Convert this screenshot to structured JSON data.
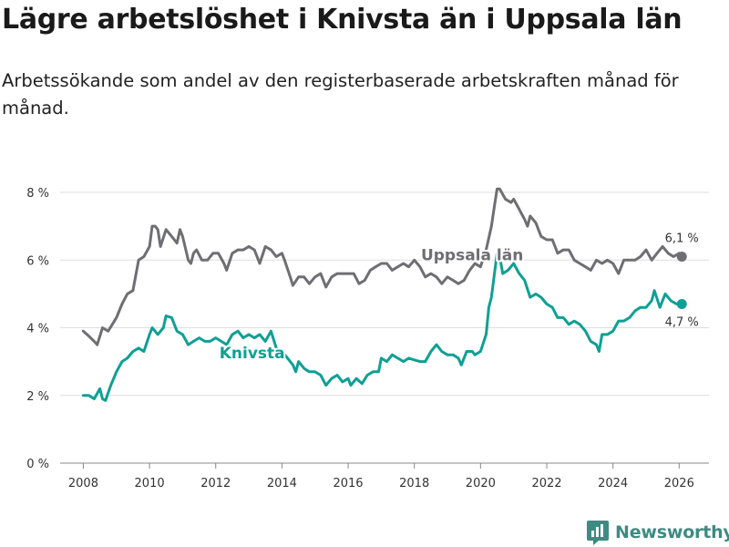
{
  "title": "Lägre arbetslöshet i Knivsta än i Uppsala län",
  "subtitle": "Arbetssökande som andel av den registerbaserade arbetskraften månad för månad.",
  "brand": "Newsworthy",
  "colors": {
    "uppsala": "#6e6e73",
    "knivsta": "#0ea094",
    "grid": "#dddddd",
    "brand": "#3d8b82"
  },
  "chart_data": {
    "type": "line",
    "title": "Lägre arbetslöshet i Knivsta än i Uppsala län",
    "xlabel": "",
    "ylabel": "",
    "xlim": [
      2007.3,
      2026.9
    ],
    "ylim": [
      0,
      8
    ],
    "x_ticks": [
      2008,
      2010,
      2012,
      2014,
      2016,
      2018,
      2020,
      2022,
      2024,
      2026
    ],
    "x_tick_labels": [
      "2008",
      "2010",
      "2012",
      "2014",
      "2016",
      "2018",
      "2020",
      "2022",
      "2024",
      "2026"
    ],
    "y_ticks": [
      0,
      2,
      4,
      6,
      8
    ],
    "y_tick_labels": [
      "0 %",
      "2 %",
      "4 %",
      "6 %",
      "8 %"
    ],
    "grid": true,
    "series": [
      {
        "name": "Uppsala län",
        "color": "#6e6e73",
        "end_label": "6,1 %",
        "points": [
          [
            2008.0,
            3.9
          ],
          [
            2008.17,
            3.75
          ],
          [
            2008.33,
            3.6
          ],
          [
            2008.42,
            3.5
          ],
          [
            2008.58,
            4.0
          ],
          [
            2008.75,
            3.9
          ],
          [
            2009.0,
            4.3
          ],
          [
            2009.17,
            4.7
          ],
          [
            2009.33,
            5.0
          ],
          [
            2009.5,
            5.1
          ],
          [
            2009.67,
            6.0
          ],
          [
            2009.83,
            6.1
          ],
          [
            2010.0,
            6.4
          ],
          [
            2010.08,
            7.0
          ],
          [
            2010.17,
            7.0
          ],
          [
            2010.25,
            6.9
          ],
          [
            2010.33,
            6.4
          ],
          [
            2010.5,
            6.9
          ],
          [
            2010.67,
            6.7
          ],
          [
            2010.83,
            6.5
          ],
          [
            2010.92,
            6.9
          ],
          [
            2011.0,
            6.7
          ],
          [
            2011.17,
            6.0
          ],
          [
            2011.25,
            5.9
          ],
          [
            2011.33,
            6.2
          ],
          [
            2011.42,
            6.3
          ],
          [
            2011.58,
            6.0
          ],
          [
            2011.75,
            6.0
          ],
          [
            2011.92,
            6.2
          ],
          [
            2012.08,
            6.2
          ],
          [
            2012.25,
            5.9
          ],
          [
            2012.33,
            5.7
          ],
          [
            2012.5,
            6.2
          ],
          [
            2012.67,
            6.3
          ],
          [
            2012.83,
            6.3
          ],
          [
            2013.0,
            6.4
          ],
          [
            2013.17,
            6.3
          ],
          [
            2013.33,
            5.9
          ],
          [
            2013.5,
            6.4
          ],
          [
            2013.67,
            6.3
          ],
          [
            2013.83,
            6.1
          ],
          [
            2014.0,
            6.2
          ],
          [
            2014.08,
            6.0
          ],
          [
            2014.25,
            5.5
          ],
          [
            2014.33,
            5.25
          ],
          [
            2014.5,
            5.5
          ],
          [
            2014.67,
            5.5
          ],
          [
            2014.83,
            5.3
          ],
          [
            2015.0,
            5.5
          ],
          [
            2015.17,
            5.6
          ],
          [
            2015.33,
            5.2
          ],
          [
            2015.5,
            5.5
          ],
          [
            2015.67,
            5.6
          ],
          [
            2015.83,
            5.6
          ],
          [
            2016.0,
            5.6
          ],
          [
            2016.17,
            5.6
          ],
          [
            2016.33,
            5.3
          ],
          [
            2016.5,
            5.4
          ],
          [
            2016.67,
            5.7
          ],
          [
            2016.83,
            5.8
          ],
          [
            2017.0,
            5.9
          ],
          [
            2017.17,
            5.9
          ],
          [
            2017.33,
            5.7
          ],
          [
            2017.5,
            5.8
          ],
          [
            2017.67,
            5.9
          ],
          [
            2017.83,
            5.8
          ],
          [
            2018.0,
            6.0
          ],
          [
            2018.17,
            5.8
          ],
          [
            2018.33,
            5.5
          ],
          [
            2018.5,
            5.6
          ],
          [
            2018.67,
            5.5
          ],
          [
            2018.83,
            5.3
          ],
          [
            2019.0,
            5.5
          ],
          [
            2019.17,
            5.4
          ],
          [
            2019.33,
            5.3
          ],
          [
            2019.5,
            5.4
          ],
          [
            2019.67,
            5.7
          ],
          [
            2019.83,
            5.9
          ],
          [
            2020.0,
            5.8
          ],
          [
            2020.17,
            6.3
          ],
          [
            2020.33,
            7.0
          ],
          [
            2020.42,
            7.6
          ],
          [
            2020.5,
            8.1
          ],
          [
            2020.58,
            8.1
          ],
          [
            2020.75,
            7.8
          ],
          [
            2020.92,
            7.7
          ],
          [
            2021.0,
            7.8
          ],
          [
            2021.17,
            7.5
          ],
          [
            2021.33,
            7.2
          ],
          [
            2021.42,
            7.0
          ],
          [
            2021.5,
            7.3
          ],
          [
            2021.67,
            7.1
          ],
          [
            2021.83,
            6.7
          ],
          [
            2022.0,
            6.6
          ],
          [
            2022.17,
            6.6
          ],
          [
            2022.33,
            6.2
          ],
          [
            2022.5,
            6.3
          ],
          [
            2022.67,
            6.3
          ],
          [
            2022.83,
            6.0
          ],
          [
            2023.0,
            5.9
          ],
          [
            2023.17,
            5.8
          ],
          [
            2023.33,
            5.7
          ],
          [
            2023.5,
            6.0
          ],
          [
            2023.67,
            5.9
          ],
          [
            2023.83,
            6.0
          ],
          [
            2024.0,
            5.9
          ],
          [
            2024.17,
            5.6
          ],
          [
            2024.33,
            6.0
          ],
          [
            2024.5,
            6.0
          ],
          [
            2024.67,
            6.0
          ],
          [
            2024.83,
            6.1
          ],
          [
            2025.0,
            6.3
          ],
          [
            2025.17,
            6.0
          ],
          [
            2025.33,
            6.2
          ],
          [
            2025.5,
            6.4
          ],
          [
            2025.67,
            6.2
          ],
          [
            2025.83,
            6.1
          ],
          [
            2026.0,
            6.2
          ],
          [
            2026.08,
            6.1
          ]
        ]
      },
      {
        "name": "Knivsta",
        "color": "#0ea094",
        "end_label": "4,7 %",
        "points": [
          [
            2008.0,
            2.0
          ],
          [
            2008.17,
            2.0
          ],
          [
            2008.33,
            1.9
          ],
          [
            2008.5,
            2.2
          ],
          [
            2008.58,
            1.9
          ],
          [
            2008.67,
            1.85
          ],
          [
            2008.83,
            2.3
          ],
          [
            2009.0,
            2.7
          ],
          [
            2009.17,
            3.0
          ],
          [
            2009.33,
            3.1
          ],
          [
            2009.5,
            3.3
          ],
          [
            2009.67,
            3.4
          ],
          [
            2009.83,
            3.3
          ],
          [
            2010.0,
            3.8
          ],
          [
            2010.08,
            4.0
          ],
          [
            2010.25,
            3.8
          ],
          [
            2010.42,
            4.0
          ],
          [
            2010.5,
            4.35
          ],
          [
            2010.67,
            4.3
          ],
          [
            2010.83,
            3.9
          ],
          [
            2011.0,
            3.8
          ],
          [
            2011.17,
            3.5
          ],
          [
            2011.33,
            3.6
          ],
          [
            2011.5,
            3.7
          ],
          [
            2011.67,
            3.6
          ],
          [
            2011.83,
            3.6
          ],
          [
            2012.0,
            3.7
          ],
          [
            2012.17,
            3.6
          ],
          [
            2012.33,
            3.5
          ],
          [
            2012.5,
            3.8
          ],
          [
            2012.67,
            3.9
          ],
          [
            2012.83,
            3.7
          ],
          [
            2013.0,
            3.8
          ],
          [
            2013.17,
            3.7
          ],
          [
            2013.33,
            3.8
          ],
          [
            2013.5,
            3.6
          ],
          [
            2013.67,
            3.9
          ],
          [
            2013.83,
            3.4
          ],
          [
            2014.0,
            3.3
          ],
          [
            2014.17,
            3.1
          ],
          [
            2014.33,
            2.9
          ],
          [
            2014.42,
            2.7
          ],
          [
            2014.5,
            3.0
          ],
          [
            2014.67,
            2.8
          ],
          [
            2014.83,
            2.7
          ],
          [
            2015.0,
            2.7
          ],
          [
            2015.17,
            2.6
          ],
          [
            2015.33,
            2.3
          ],
          [
            2015.5,
            2.5
          ],
          [
            2015.67,
            2.6
          ],
          [
            2015.83,
            2.4
          ],
          [
            2016.0,
            2.5
          ],
          [
            2016.08,
            2.3
          ],
          [
            2016.25,
            2.5
          ],
          [
            2016.42,
            2.35
          ],
          [
            2016.58,
            2.6
          ],
          [
            2016.75,
            2.7
          ],
          [
            2016.92,
            2.7
          ],
          [
            2017.0,
            3.1
          ],
          [
            2017.17,
            3.0
          ],
          [
            2017.33,
            3.2
          ],
          [
            2017.5,
            3.1
          ],
          [
            2017.67,
            3.0
          ],
          [
            2017.83,
            3.1
          ],
          [
            2018.0,
            3.05
          ],
          [
            2018.17,
            3.0
          ],
          [
            2018.33,
            3.0
          ],
          [
            2018.5,
            3.3
          ],
          [
            2018.67,
            3.5
          ],
          [
            2018.83,
            3.3
          ],
          [
            2019.0,
            3.2
          ],
          [
            2019.17,
            3.2
          ],
          [
            2019.33,
            3.1
          ],
          [
            2019.42,
            2.9
          ],
          [
            2019.58,
            3.3
          ],
          [
            2019.75,
            3.3
          ],
          [
            2019.83,
            3.2
          ],
          [
            2020.0,
            3.3
          ],
          [
            2020.17,
            3.8
          ],
          [
            2020.25,
            4.6
          ],
          [
            2020.33,
            4.9
          ],
          [
            2020.42,
            5.6
          ],
          [
            2020.5,
            6.2
          ],
          [
            2020.58,
            6.1
          ],
          [
            2020.67,
            5.6
          ],
          [
            2020.83,
            5.7
          ],
          [
            2021.0,
            5.9
          ],
          [
            2021.17,
            5.6
          ],
          [
            2021.33,
            5.4
          ],
          [
            2021.5,
            4.9
          ],
          [
            2021.67,
            5.0
          ],
          [
            2021.83,
            4.9
          ],
          [
            2022.0,
            4.7
          ],
          [
            2022.17,
            4.6
          ],
          [
            2022.33,
            4.3
          ],
          [
            2022.5,
            4.3
          ],
          [
            2022.67,
            4.1
          ],
          [
            2022.83,
            4.2
          ],
          [
            2023.0,
            4.1
          ],
          [
            2023.17,
            3.9
          ],
          [
            2023.33,
            3.6
          ],
          [
            2023.5,
            3.5
          ],
          [
            2023.58,
            3.3
          ],
          [
            2023.67,
            3.8
          ],
          [
            2023.83,
            3.8
          ],
          [
            2024.0,
            3.9
          ],
          [
            2024.17,
            4.2
          ],
          [
            2024.33,
            4.2
          ],
          [
            2024.5,
            4.3
          ],
          [
            2024.67,
            4.5
          ],
          [
            2024.83,
            4.6
          ],
          [
            2025.0,
            4.6
          ],
          [
            2025.17,
            4.8
          ],
          [
            2025.25,
            5.1
          ],
          [
            2025.42,
            4.6
          ],
          [
            2025.58,
            5.0
          ],
          [
            2025.75,
            4.8
          ],
          [
            2025.92,
            4.7
          ],
          [
            2026.08,
            4.7
          ]
        ]
      }
    ]
  }
}
